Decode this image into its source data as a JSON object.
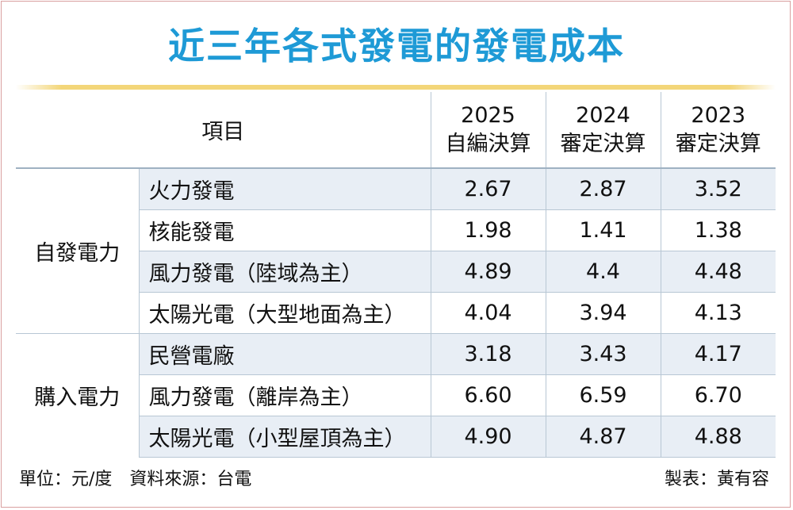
{
  "title": "近三年各式發電的發電成本",
  "chart_data": {
    "type": "table",
    "header_item": "項目",
    "columns": [
      {
        "year": "2025",
        "label": "自編決算"
      },
      {
        "year": "2024",
        "label": "審定決算"
      },
      {
        "year": "2023",
        "label": "審定決算"
      }
    ],
    "groups": [
      {
        "name": "自發電力",
        "rows": [
          {
            "item": "火力發電",
            "values": [
              "2.67",
              "2.87",
              "3.52"
            ]
          },
          {
            "item": "核能發電",
            "values": [
              "1.98",
              "1.41",
              "1.38"
            ]
          },
          {
            "item": "風力發電（陸域為主）",
            "values": [
              "4.89",
              "4.4",
              "4.48"
            ]
          },
          {
            "item": "太陽光電（大型地面為主）",
            "values": [
              "4.04",
              "3.94",
              "4.13"
            ]
          }
        ]
      },
      {
        "name": "購入電力",
        "rows": [
          {
            "item": "民營電廠",
            "values": [
              "3.18",
              "3.43",
              "4.17"
            ]
          },
          {
            "item": "風力發電（離岸為主）",
            "values": [
              "6.60",
              "6.59",
              "6.70"
            ]
          },
          {
            "item": "太陽光電（小型屋頂為主）",
            "values": [
              "4.90",
              "4.87",
              "4.88"
            ]
          }
        ]
      }
    ]
  },
  "footer": {
    "left": "單位：元/度　資料來源：台電",
    "right": "製表：黃有容"
  },
  "colors": {
    "title": "#1e9ad6",
    "accent_rule": "#f3d679",
    "row_stripe": "#e8eef5",
    "grid_line": "#b8c7d4"
  }
}
